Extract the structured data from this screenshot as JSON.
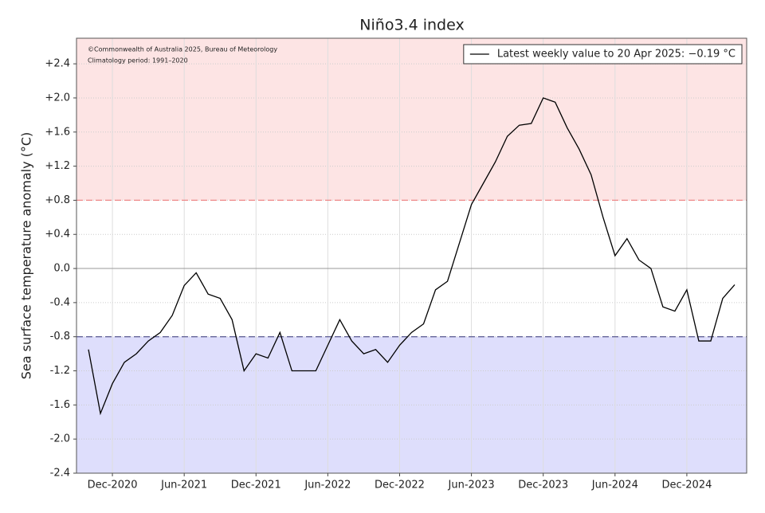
{
  "chart_data": {
    "type": "line",
    "title": "Niño3.4 index",
    "y_label": "Sea surface temperature anomaly (°C)",
    "annotations": [
      "©Commonwealth of Australia 2025, Bureau of Meteorology",
      "Climatology period: 1991–2020"
    ],
    "x": [
      "2020-10",
      "2020-11",
      "2020-12",
      "2021-01",
      "2021-02",
      "2021-03",
      "2021-04",
      "2021-05",
      "2021-06",
      "2021-07",
      "2021-08",
      "2021-09",
      "2021-10",
      "2021-11",
      "2021-12",
      "2022-01",
      "2022-02",
      "2022-03",
      "2022-04",
      "2022-05",
      "2022-06",
      "2022-07",
      "2022-08",
      "2022-09",
      "2022-10",
      "2022-11",
      "2022-12",
      "2023-01",
      "2023-02",
      "2023-03",
      "2023-04",
      "2023-05",
      "2023-06",
      "2023-07",
      "2023-08",
      "2023-09",
      "2023-10",
      "2023-11",
      "2023-12",
      "2024-01",
      "2024-02",
      "2024-03",
      "2024-04",
      "2024-05",
      "2024-06",
      "2024-07",
      "2024-08",
      "2024-09",
      "2024-10",
      "2024-11",
      "2024-12",
      "2025-01",
      "2025-02",
      "2025-03",
      "2025-04"
    ],
    "series": [
      {
        "name": "Latest weekly value to 20 Apr 2025: −0.19 °C",
        "color": "#000000",
        "values": [
          -0.95,
          -1.7,
          -1.35,
          -1.1,
          -1.0,
          -0.85,
          -0.75,
          -0.55,
          -0.2,
          -0.05,
          -0.3,
          -0.35,
          -0.6,
          -1.2,
          -1.0,
          -1.05,
          -0.75,
          -1.2,
          -1.2,
          -1.2,
          -0.9,
          -0.6,
          -0.85,
          -1.0,
          -0.95,
          -1.1,
          -0.9,
          -0.75,
          -0.65,
          -0.25,
          -0.15,
          0.3,
          0.75,
          1.0,
          1.25,
          1.55,
          1.68,
          1.7,
          2.0,
          1.95,
          1.65,
          1.4,
          1.1,
          0.6,
          0.15,
          0.35,
          0.1,
          0.0,
          -0.45,
          -0.5,
          -0.25,
          -0.85,
          -0.85,
          -0.35,
          -0.19
        ]
      }
    ],
    "xlim": [
      "2020-09",
      "2025-05"
    ],
    "xticks": [
      {
        "value": "2020-12",
        "label": "Dec-2020"
      },
      {
        "value": "2021-06",
        "label": "Jun-2021"
      },
      {
        "value": "2021-12",
        "label": "Dec-2021"
      },
      {
        "value": "2022-06",
        "label": "Jun-2022"
      },
      {
        "value": "2022-12",
        "label": "Dec-2022"
      },
      {
        "value": "2023-06",
        "label": "Jun-2023"
      },
      {
        "value": "2023-12",
        "label": "Dec-2023"
      },
      {
        "value": "2024-06",
        "label": "Jun-2024"
      },
      {
        "value": "2024-12",
        "label": "Dec-2024"
      }
    ],
    "ylim": [
      -2.4,
      2.7
    ],
    "yticks": [
      -2.4,
      {
        "value": -2.0,
        "label": "-2.0"
      },
      -1.6,
      -1.2,
      -0.8,
      -0.4,
      {
        "value": 0,
        "label": "0.0"
      },
      {
        "value": 0.4,
        "label": "+0.4"
      },
      {
        "value": 0.8,
        "label": "+0.8"
      },
      {
        "value": 1.2,
        "label": "+1.2"
      },
      {
        "value": 1.6,
        "label": "+1.6"
      },
      {
        "value": 2.0,
        "label": "+2.0"
      },
      {
        "value": 2.4,
        "label": "+2.4"
      }
    ],
    "warm_threshold": 0.8,
    "cool_threshold": -0.8,
    "warm_color": "#fde4e4",
    "cool_color": "#dedefc",
    "grid": true,
    "legend": "upper right"
  }
}
